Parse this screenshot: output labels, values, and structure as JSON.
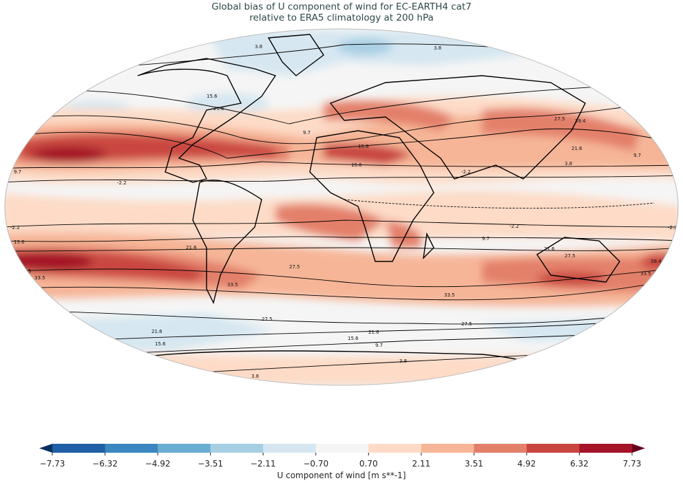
{
  "title": {
    "line1": "Global bias of U component of wind for EC-EARTH4 cat7",
    "line2": "relative to ERA5 climatology at 200 hPa"
  },
  "map": {
    "projection": "Robinson",
    "field": "U component of wind bias (filled)",
    "contour_levels": [
      "-2.2",
      "3.8",
      "9.7",
      "15.6",
      "21.6",
      "27.5",
      "33.5",
      "39.4"
    ],
    "ocean_land_background": "#f5f5f5",
    "coastline_color": "#000000"
  },
  "colorbar": {
    "label": "U component of wind [m s**-1]",
    "ticks": [
      "−7.73",
      "−6.32",
      "−4.92",
      "−3.51",
      "−2.11",
      "−0.70",
      "0.70",
      "2.11",
      "3.51",
      "4.92",
      "6.32",
      "7.73"
    ],
    "colors": [
      "#1f5fa6",
      "#3a87c0",
      "#6aaed3",
      "#a7cfe4",
      "#d6e7f1",
      "#f5f5f5",
      "#fddbc7",
      "#f6b597",
      "#e3806a",
      "#c9463f",
      "#a51428"
    ],
    "extend_low_color": "#053061",
    "extend_high_color": "#67001f",
    "extend": "both"
  }
}
